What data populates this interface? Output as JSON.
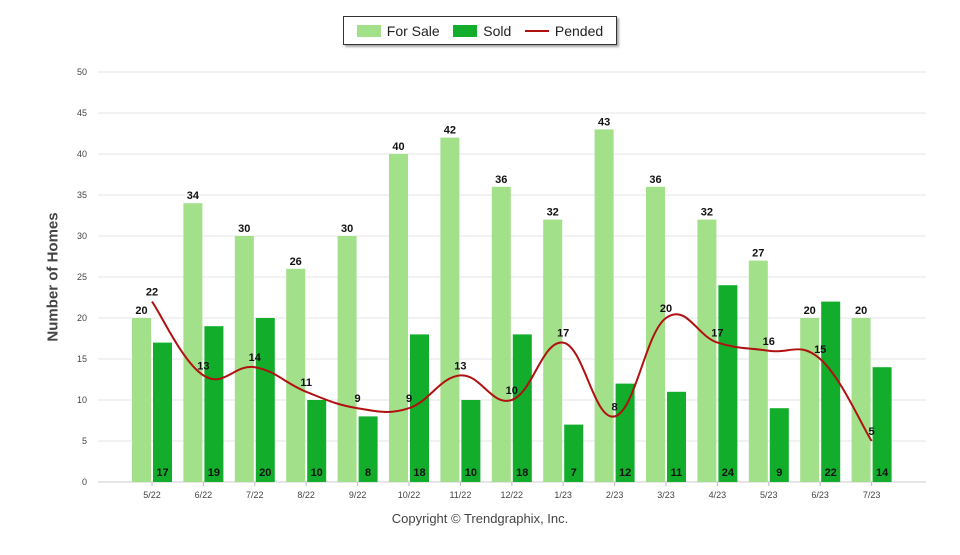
{
  "colors": {
    "for_sale": "#a3e08a",
    "sold": "#12ad2b",
    "pended": "#b01010"
  },
  "legend": {
    "for_sale": "For Sale",
    "sold": "Sold",
    "pended": "Pended"
  },
  "footer": {
    "copyright": "Copyright © Trendgraphix, Inc."
  },
  "chart_data": {
    "type": "bar",
    "categories": [
      "5/22",
      "6/22",
      "7/22",
      "8/22",
      "9/22",
      "10/22",
      "11/22",
      "12/22",
      "1/23",
      "2/23",
      "3/23",
      "4/23",
      "5/23",
      "6/23",
      "7/23"
    ],
    "series": [
      {
        "name": "For Sale",
        "type": "bar",
        "values": [
          20,
          34,
          30,
          26,
          30,
          40,
          42,
          36,
          32,
          43,
          36,
          32,
          27,
          20,
          20
        ]
      },
      {
        "name": "Sold",
        "type": "bar",
        "values": [
          17,
          19,
          20,
          10,
          8,
          18,
          10,
          18,
          7,
          12,
          11,
          24,
          9,
          22,
          14
        ]
      },
      {
        "name": "Pended",
        "type": "line",
        "values": [
          22,
          13,
          14,
          11,
          9,
          9,
          13,
          10,
          17,
          8,
          20,
          17,
          16,
          15,
          5
        ]
      }
    ],
    "ylabel": "Number of Homes",
    "ylim": [
      0,
      50
    ],
    "yticks": [
      0,
      5,
      10,
      15,
      20,
      25,
      30,
      35,
      40,
      45,
      50
    ],
    "grid": true,
    "legend_position": "top-center"
  }
}
